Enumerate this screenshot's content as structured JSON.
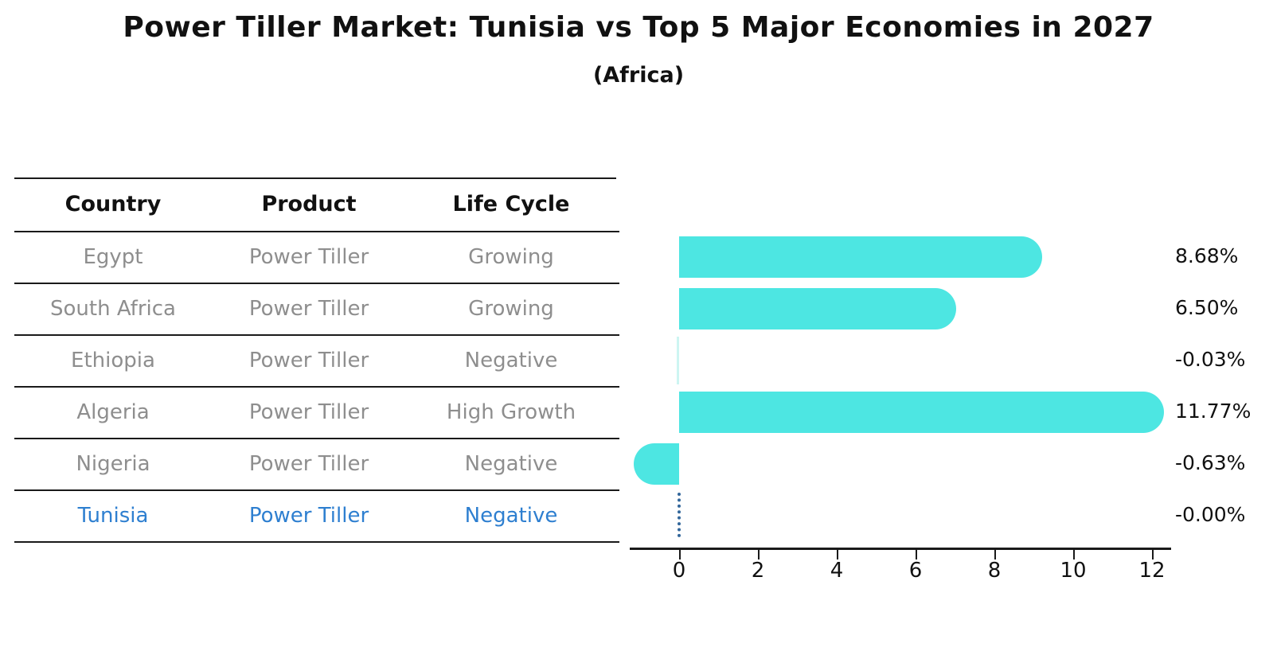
{
  "title": "Power Tiller Market: Tunisia vs Top 5 Major Economies in 2027",
  "subtitle": "(Africa)",
  "table": {
    "headers": [
      "Country",
      "Product",
      "Life Cycle"
    ],
    "rows": [
      {
        "country": "Egypt",
        "product": "Power Tiller",
        "life_cycle": "Growing",
        "highlight": false
      },
      {
        "country": "South Africa",
        "product": "Power Tiller",
        "life_cycle": "Growing",
        "highlight": false
      },
      {
        "country": "Ethiopia",
        "product": "Power Tiller",
        "life_cycle": "Negative",
        "highlight": false
      },
      {
        "country": "Algeria",
        "product": "Power Tiller",
        "life_cycle": "High Growth",
        "highlight": false
      },
      {
        "country": "Nigeria",
        "product": "Power Tiller",
        "life_cycle": "Negative",
        "highlight": false
      },
      {
        "country": "Tunisia",
        "product": "Power Tiller",
        "life_cycle": "Negative",
        "highlight": true
      }
    ]
  },
  "chart_data": {
    "type": "bar",
    "orientation": "horizontal",
    "title": "Power Tiller Market: Tunisia vs Top 5 Major Economies in 2027",
    "subtitle": "(Africa)",
    "categories": [
      "Egypt",
      "South Africa",
      "Ethiopia",
      "Algeria",
      "Nigeria",
      "Tunisia"
    ],
    "values": [
      8.68,
      6.5,
      -0.03,
      11.77,
      -0.63,
      -0.0
    ],
    "bars": [
      {
        "label": "Egypt",
        "value": 8.68,
        "display": "8.68%",
        "style": "solid"
      },
      {
        "label": "South Africa",
        "value": 6.5,
        "display": "6.50%",
        "style": "solid"
      },
      {
        "label": "Ethiopia",
        "value": -0.03,
        "display": "-0.03%",
        "style": "sliver"
      },
      {
        "label": "Algeria",
        "value": 11.77,
        "display": "11.77%",
        "style": "solid"
      },
      {
        "label": "Nigeria",
        "value": -0.63,
        "display": "-0.63%",
        "style": "solid"
      },
      {
        "label": "Tunisia",
        "value": -0.0,
        "display": "-0.00%",
        "style": "dotted"
      }
    ],
    "x_ticks": [
      "0",
      "2",
      "4",
      "6",
      "8",
      "10",
      "12"
    ],
    "x_tick_values": [
      0,
      2,
      4,
      6,
      8,
      10,
      12
    ],
    "xlim": [
      -1.3,
      12.5
    ],
    "grid": false,
    "legend": "none",
    "unit": "%",
    "colors": {
      "bar": "#4DE6E2",
      "bar_sliver": "#CDF5F2",
      "zero_dotted": "#33679B",
      "highlight_text": "#2E7FD0",
      "table_text": "#8E8E8E",
      "axis": "#1A1A1A"
    }
  }
}
